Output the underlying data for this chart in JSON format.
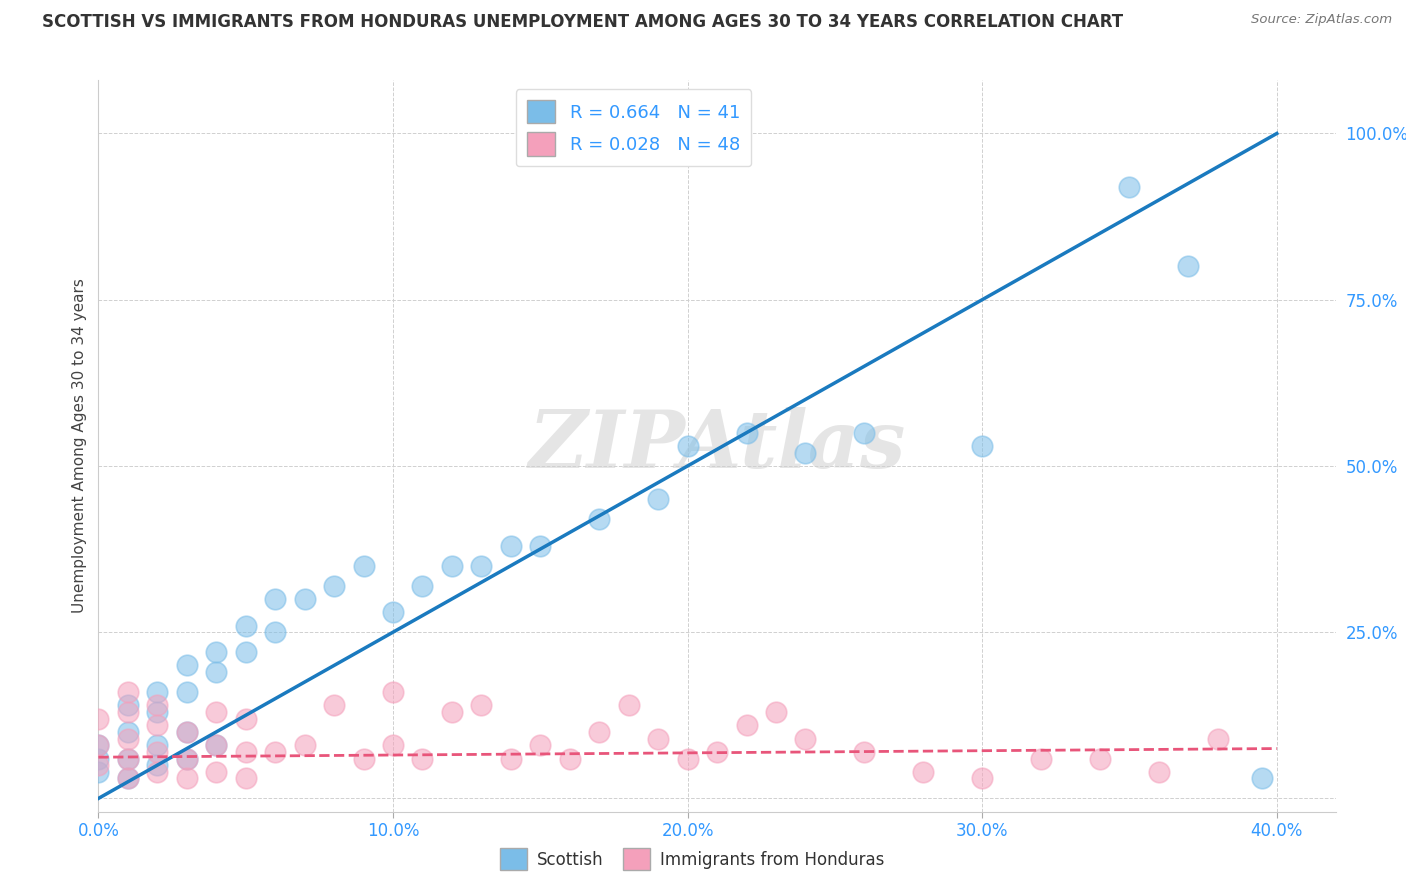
{
  "title": "SCOTTISH VS IMMIGRANTS FROM HONDURAS UNEMPLOYMENT AMONG AGES 30 TO 34 YEARS CORRELATION CHART",
  "source": "Source: ZipAtlas.com",
  "ylabel": "Unemployment Among Ages 30 to 34 years",
  "xlim": [
    0.0,
    0.42
  ],
  "ylim": [
    -0.02,
    1.08
  ],
  "xticks": [
    0.0,
    0.1,
    0.2,
    0.3,
    0.4
  ],
  "xticklabels": [
    "0.0%",
    "10.0%",
    "20.0%",
    "30.0%",
    "40.0%"
  ],
  "yticks": [
    0.0,
    0.25,
    0.5,
    0.75,
    1.0
  ],
  "yticklabels": [
    "",
    "25.0%",
    "50.0%",
    "75.0%",
    "100.0%"
  ],
  "scottish_color": "#7bbde8",
  "honduras_color": "#f4a0bb",
  "scottish_line_color": "#1a7abf",
  "honduras_line_color": "#e8557a",
  "scottish_R": 0.664,
  "scottish_N": 41,
  "honduras_R": 0.028,
  "honduras_N": 48,
  "background_color": "#ffffff",
  "grid_color": "#d0d0d0",
  "watermark": "ZIPAtlas",
  "scottish_line_x0": 0.0,
  "scottish_line_y0": 0.0,
  "scottish_line_x1": 0.4,
  "scottish_line_y1": 1.0,
  "honduras_line_x0": 0.0,
  "honduras_line_y0": 0.062,
  "honduras_line_x1": 0.4,
  "honduras_line_y1": 0.075,
  "scottish_x": [
    0.0,
    0.0,
    0.0,
    0.01,
    0.01,
    0.01,
    0.01,
    0.02,
    0.02,
    0.02,
    0.02,
    0.03,
    0.03,
    0.03,
    0.03,
    0.04,
    0.04,
    0.04,
    0.05,
    0.05,
    0.06,
    0.06,
    0.07,
    0.08,
    0.09,
    0.1,
    0.11,
    0.12,
    0.13,
    0.14,
    0.15,
    0.17,
    0.19,
    0.2,
    0.22,
    0.24,
    0.26,
    0.3,
    0.35,
    0.37,
    0.395
  ],
  "scottish_y": [
    0.04,
    0.06,
    0.08,
    0.03,
    0.06,
    0.1,
    0.14,
    0.05,
    0.08,
    0.13,
    0.16,
    0.06,
    0.1,
    0.16,
    0.2,
    0.08,
    0.19,
    0.22,
    0.22,
    0.26,
    0.25,
    0.3,
    0.3,
    0.32,
    0.35,
    0.28,
    0.32,
    0.35,
    0.35,
    0.38,
    0.38,
    0.42,
    0.45,
    0.53,
    0.55,
    0.52,
    0.55,
    0.53,
    0.92,
    0.8,
    0.03
  ],
  "honduras_x": [
    0.0,
    0.0,
    0.0,
    0.01,
    0.01,
    0.01,
    0.01,
    0.01,
    0.02,
    0.02,
    0.02,
    0.02,
    0.03,
    0.03,
    0.03,
    0.04,
    0.04,
    0.04,
    0.05,
    0.05,
    0.05,
    0.06,
    0.07,
    0.08,
    0.09,
    0.1,
    0.1,
    0.11,
    0.12,
    0.13,
    0.14,
    0.15,
    0.16,
    0.17,
    0.18,
    0.19,
    0.2,
    0.21,
    0.22,
    0.23,
    0.24,
    0.26,
    0.28,
    0.3,
    0.32,
    0.34,
    0.36,
    0.38
  ],
  "honduras_y": [
    0.05,
    0.08,
    0.12,
    0.03,
    0.06,
    0.09,
    0.13,
    0.16,
    0.04,
    0.07,
    0.11,
    0.14,
    0.03,
    0.06,
    0.1,
    0.04,
    0.08,
    0.13,
    0.03,
    0.07,
    0.12,
    0.07,
    0.08,
    0.14,
    0.06,
    0.08,
    0.16,
    0.06,
    0.13,
    0.14,
    0.06,
    0.08,
    0.06,
    0.1,
    0.14,
    0.09,
    0.06,
    0.07,
    0.11,
    0.13,
    0.09,
    0.07,
    0.04,
    0.03,
    0.06,
    0.06,
    0.04,
    0.09
  ]
}
